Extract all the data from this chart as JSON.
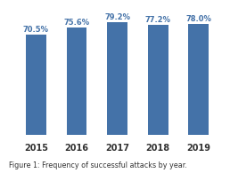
{
  "categories": [
    "2015",
    "2016",
    "2017",
    "2018",
    "2019"
  ],
  "values": [
    70.5,
    75.6,
    79.2,
    77.2,
    78.0
  ],
  "labels": [
    "70.5%",
    "75.6%",
    "79.2%",
    "77.2%",
    "78.0%"
  ],
  "bar_color": "#4472a8",
  "background_color": "#ffffff",
  "ylim": [
    0,
    85
  ],
  "xlabel_fontsize": 7,
  "label_fontsize": 6.0,
  "caption": "Figure 1: Frequency of successful attacks by year.",
  "caption_fontsize": 5.8,
  "bar_width": 0.5
}
